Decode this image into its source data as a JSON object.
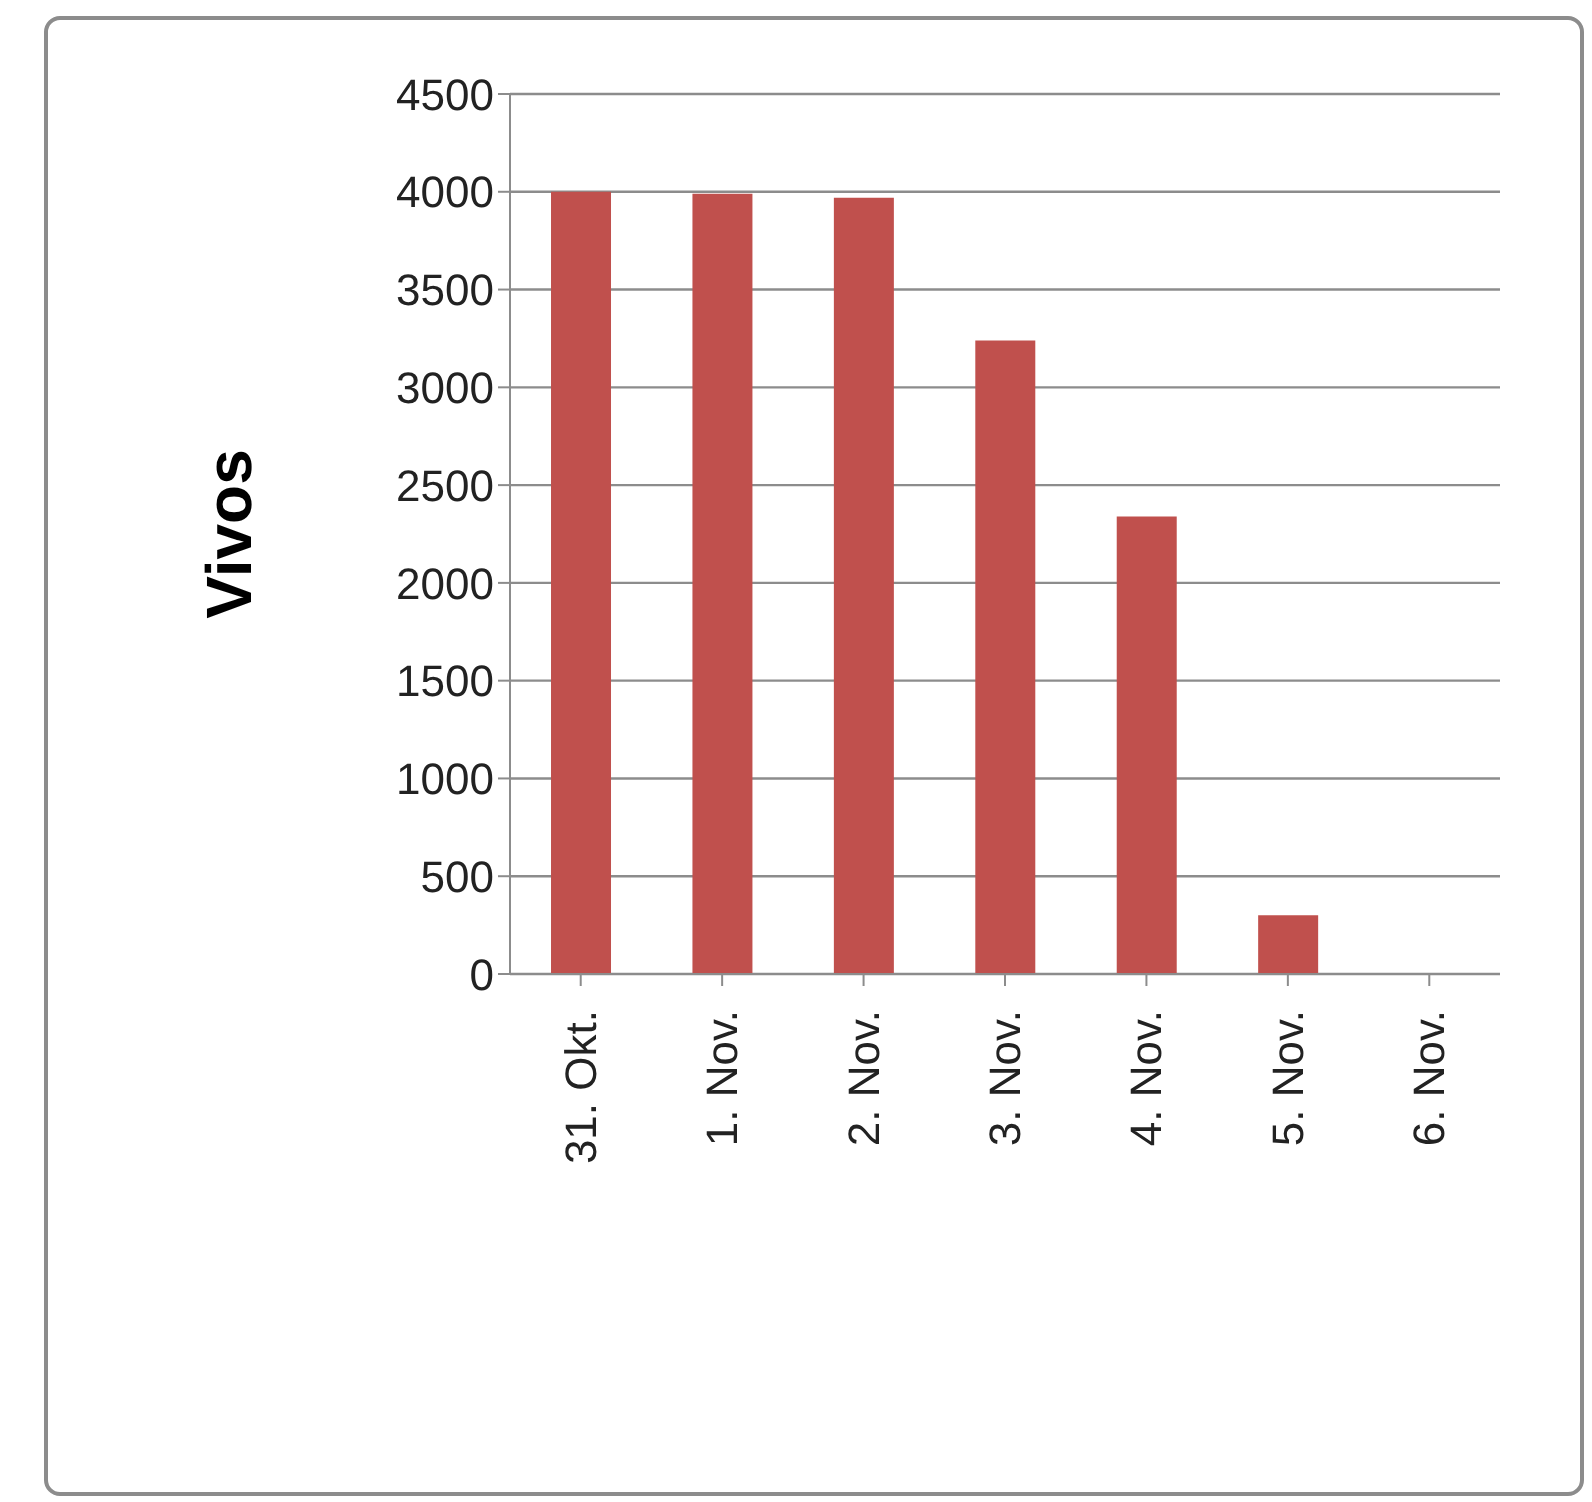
{
  "chart_data": {
    "type": "bar",
    "ylabel": "Vivos",
    "categories": [
      "31. Okt.",
      "1. Nov.",
      "2. Nov.",
      "3. Nov.",
      "4. Nov.",
      "5. Nov.",
      "6. Nov."
    ],
    "values": [
      4000,
      3990,
      3970,
      3240,
      2340,
      300,
      0
    ],
    "color": "#c0504d",
    "ylim": [
      0,
      4500
    ],
    "yticks": [
      0,
      500,
      1000,
      1500,
      2000,
      2500,
      3000,
      3500,
      4000,
      4500
    ],
    "grid": "y",
    "legend": false
  }
}
